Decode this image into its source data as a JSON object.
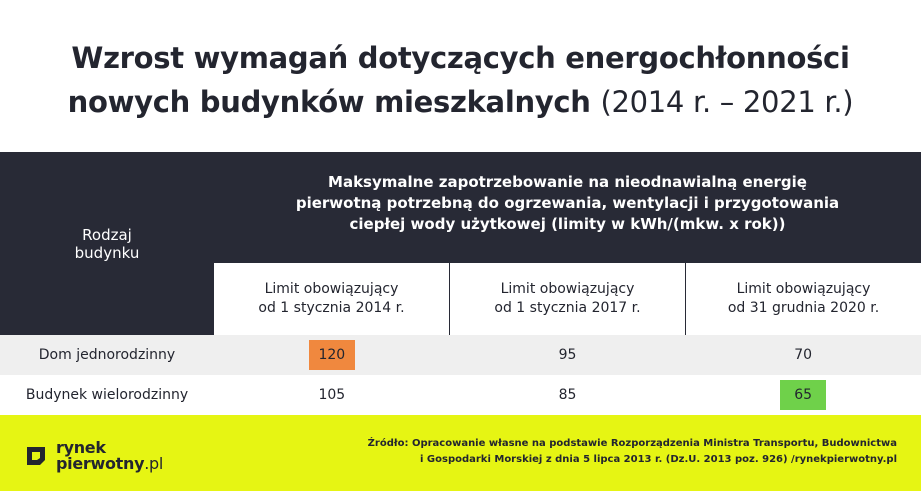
{
  "title": {
    "line1": "Wzrost wymagań dotyczących energochłonności",
    "line2_bold": "nowych budynków mieszkalnych",
    "line2_light": "(2014 r. – 2021 r.)"
  },
  "table": {
    "row_header": [
      "Rodzaj",
      "budynku"
    ],
    "column_group_header": [
      "Maksymalne zapotrzebowanie na nieodnawialną energię",
      "pierwotną potrzebną do ogrzewania, wentylacji i przygotowania",
      "ciepłej wody użytkowej (limity w kWh/(mkw. x rok))"
    ],
    "columns": [
      [
        "Limit obowiązujący",
        "od 1 stycznia 2014 r."
      ],
      [
        "Limit obowiązujący",
        "od 1 stycznia 2017 r."
      ],
      [
        "Limit obowiązujący",
        "od 31 grudnia 2020 r."
      ]
    ],
    "rows": [
      {
        "label": "Dom jednorodzinny",
        "values": [
          "120",
          "95",
          "70"
        ]
      },
      {
        "label": "Budynek wielorodzinny",
        "values": [
          "105",
          "85",
          "65"
        ]
      }
    ],
    "highlight_colors": {
      "orange": "#f0883e",
      "green": "#6fd14a"
    }
  },
  "footer": {
    "logo_line1": "rynek",
    "logo_line2_bold": "pierwotny",
    "logo_line2_suffix": ".pl",
    "source_line1": "Źródło: Opracowanie własne na podstawie Rozporządzenia Ministra Transportu, Budownictwa",
    "source_line2": "i Gospodarki Morskiej z dnia 5 lipca 2013 r. (Dz.U. 2013 poz. 926) /rynekpierwotny.pl",
    "background": "#e6f513"
  },
  "colors": {
    "dark": "#282a36",
    "row_alt": "#efefef"
  }
}
